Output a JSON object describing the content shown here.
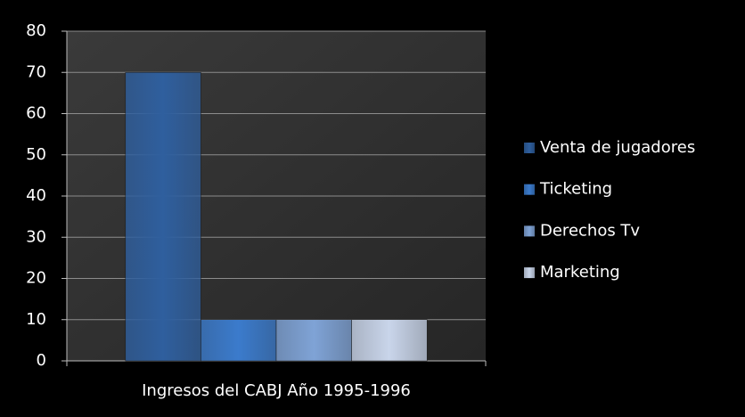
{
  "chart_data": {
    "type": "bar",
    "categories": [
      "Ingresos del CABJ Año 1995-1996"
    ],
    "series": [
      {
        "name": "Venta de jugadores",
        "color": "#2f5f9e",
        "values": [
          70
        ]
      },
      {
        "name": "Ticketing",
        "color": "#3b7bcc",
        "values": [
          10
        ]
      },
      {
        "name": "Derechos Tv",
        "color": "#7fa3d6",
        "values": [
          10
        ]
      },
      {
        "name": "Marketing",
        "color": "#c9d5ea",
        "values": [
          10
        ]
      }
    ],
    "ylim": [
      0,
      80
    ],
    "yticks": [
      0,
      10,
      20,
      30,
      40,
      50,
      60,
      70,
      80
    ],
    "grid": true,
    "legend": "right"
  }
}
